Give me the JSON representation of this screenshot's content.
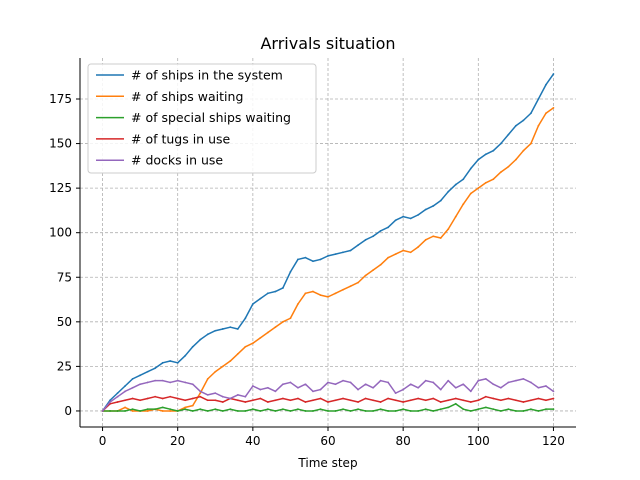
{
  "chart_data": {
    "type": "line",
    "title": "Arrivals situation",
    "xlabel": "Time step",
    "ylabel": "",
    "xlim": [
      -6,
      126
    ],
    "ylim": [
      -9,
      198
    ],
    "xticks": [
      0,
      20,
      40,
      60,
      80,
      100,
      120
    ],
    "yticks": [
      0,
      25,
      50,
      75,
      100,
      125,
      150,
      175
    ],
    "grid": true,
    "legend_position": "top-left",
    "series": [
      {
        "name": "# of ships in the system",
        "color": "#1f77b4",
        "x": [
          0,
          2,
          4,
          6,
          8,
          10,
          12,
          14,
          16,
          18,
          20,
          22,
          24,
          26,
          28,
          30,
          32,
          34,
          36,
          38,
          40,
          42,
          44,
          46,
          48,
          50,
          52,
          54,
          56,
          58,
          60,
          62,
          64,
          66,
          68,
          70,
          72,
          74,
          76,
          78,
          80,
          82,
          84,
          86,
          88,
          90,
          92,
          94,
          96,
          98,
          100,
          102,
          104,
          106,
          108,
          110,
          112,
          114,
          116,
          118,
          120
        ],
        "y": [
          0,
          6,
          10,
          14,
          18,
          20,
          22,
          24,
          27,
          28,
          27,
          31,
          36,
          40,
          43,
          45,
          46,
          47,
          46,
          52,
          60,
          63,
          66,
          67,
          69,
          78,
          85,
          86,
          84,
          85,
          87,
          88,
          89,
          90,
          93,
          96,
          98,
          101,
          103,
          107,
          109,
          108,
          110,
          113,
          115,
          118,
          123,
          127,
          130,
          136,
          141,
          144,
          146,
          150,
          155,
          160,
          163,
          167,
          175,
          183,
          189
        ]
      },
      {
        "name": "# of ships waiting",
        "color": "#ff7f0e",
        "x": [
          0,
          2,
          4,
          6,
          8,
          10,
          12,
          14,
          16,
          18,
          20,
          22,
          24,
          26,
          28,
          30,
          32,
          34,
          36,
          38,
          40,
          42,
          44,
          46,
          48,
          50,
          52,
          54,
          56,
          58,
          60,
          62,
          64,
          66,
          68,
          70,
          72,
          74,
          76,
          78,
          80,
          82,
          84,
          86,
          88,
          90,
          92,
          94,
          96,
          98,
          100,
          102,
          104,
          106,
          108,
          110,
          112,
          114,
          116,
          118,
          120
        ],
        "y": [
          0,
          0,
          0,
          2,
          0,
          0,
          0,
          1,
          0,
          0,
          0,
          2,
          3,
          10,
          18,
          22,
          25,
          28,
          32,
          36,
          38,
          41,
          44,
          47,
          50,
          52,
          60,
          66,
          67,
          65,
          64,
          66,
          68,
          70,
          72,
          76,
          79,
          82,
          86,
          88,
          90,
          89,
          92,
          96,
          98,
          97,
          102,
          109,
          116,
          122,
          125,
          128,
          130,
          134,
          137,
          141,
          146,
          150,
          160,
          167,
          170
        ]
      },
      {
        "name": "# of special ships waiting",
        "color": "#2ca02c",
        "x": [
          0,
          2,
          4,
          6,
          8,
          10,
          12,
          14,
          16,
          18,
          20,
          22,
          24,
          26,
          28,
          30,
          32,
          34,
          36,
          38,
          40,
          42,
          44,
          46,
          48,
          50,
          52,
          54,
          56,
          58,
          60,
          62,
          64,
          66,
          68,
          70,
          72,
          74,
          76,
          78,
          80,
          82,
          84,
          86,
          88,
          90,
          92,
          94,
          96,
          98,
          100,
          102,
          104,
          106,
          108,
          110,
          112,
          114,
          116,
          118,
          120
        ],
        "y": [
          0,
          0,
          0,
          0,
          1,
          0,
          1,
          1,
          2,
          1,
          0,
          1,
          0,
          1,
          0,
          1,
          0,
          1,
          0,
          0,
          1,
          0,
          1,
          0,
          1,
          0,
          1,
          0,
          0,
          1,
          0,
          0,
          1,
          0,
          1,
          0,
          0,
          1,
          0,
          0,
          1,
          0,
          0,
          1,
          0,
          1,
          2,
          4,
          1,
          0,
          1,
          2,
          1,
          0,
          1,
          0,
          0,
          1,
          0,
          1,
          1
        ]
      },
      {
        "name": "# of tugs in use",
        "color": "#d62728",
        "x": [
          0,
          2,
          4,
          6,
          8,
          10,
          12,
          14,
          16,
          18,
          20,
          22,
          24,
          26,
          28,
          30,
          32,
          34,
          36,
          38,
          40,
          42,
          44,
          46,
          48,
          50,
          52,
          54,
          56,
          58,
          60,
          62,
          64,
          66,
          68,
          70,
          72,
          74,
          76,
          78,
          80,
          82,
          84,
          86,
          88,
          90,
          92,
          94,
          96,
          98,
          100,
          102,
          104,
          106,
          108,
          110,
          112,
          114,
          116,
          118,
          120
        ],
        "y": [
          0,
          4,
          5,
          6,
          7,
          6,
          7,
          8,
          7,
          8,
          7,
          6,
          7,
          8,
          6,
          6,
          5,
          7,
          6,
          5,
          6,
          7,
          5,
          6,
          7,
          6,
          7,
          5,
          6,
          7,
          5,
          6,
          7,
          6,
          5,
          7,
          6,
          5,
          7,
          6,
          5,
          6,
          7,
          6,
          7,
          5,
          6,
          7,
          6,
          5,
          6,
          8,
          7,
          6,
          7,
          6,
          5,
          6,
          7,
          6,
          7
        ]
      },
      {
        "name": "# docks in use",
        "color": "#9467bd",
        "x": [
          0,
          2,
          4,
          6,
          8,
          10,
          12,
          14,
          16,
          18,
          20,
          22,
          24,
          26,
          28,
          30,
          32,
          34,
          36,
          38,
          40,
          42,
          44,
          46,
          48,
          50,
          52,
          54,
          56,
          58,
          60,
          62,
          64,
          66,
          68,
          70,
          72,
          74,
          76,
          78,
          80,
          82,
          84,
          86,
          88,
          90,
          92,
          94,
          96,
          98,
          100,
          102,
          104,
          106,
          108,
          110,
          112,
          114,
          116,
          118,
          120
        ],
        "y": [
          0,
          5,
          8,
          11,
          13,
          15,
          16,
          17,
          17,
          16,
          17,
          16,
          15,
          11,
          9,
          10,
          8,
          7,
          9,
          8,
          14,
          12,
          13,
          11,
          15,
          16,
          13,
          15,
          11,
          12,
          16,
          15,
          17,
          16,
          12,
          15,
          13,
          17,
          16,
          10,
          12,
          15,
          13,
          17,
          16,
          12,
          17,
          13,
          15,
          11,
          17,
          18,
          15,
          13,
          16,
          17,
          18,
          16,
          13,
          14,
          11
        ]
      }
    ]
  }
}
